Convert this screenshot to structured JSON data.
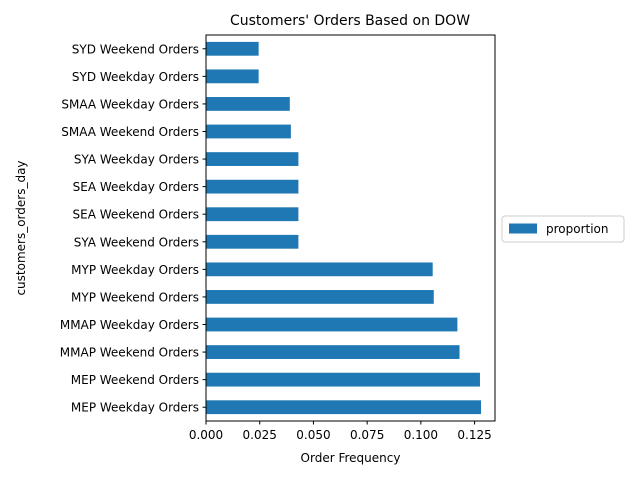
{
  "chart_data": {
    "type": "bar",
    "orientation": "horizontal",
    "title": "Customers' Orders Based on DOW",
    "xlabel": "Order Frequency",
    "ylabel": "customers_orders_day",
    "categories": [
      "MEP Weekday Orders",
      "MEP Weekend Orders",
      "MMAP Weekend Orders",
      "MMAP Weekday Orders",
      "MYP Weekend Orders",
      "MYP Weekday Orders",
      "SYA Weekend Orders",
      "SEA Weekend Orders",
      "SEA Weekday Orders",
      "SYA Weekday Orders",
      "SMAA Weekend Orders",
      "SMAA Weekday Orders",
      "SYD Weekday Orders",
      "SYD Weekend Orders"
    ],
    "series": [
      {
        "name": "proportion",
        "color": "#1f77b4",
        "values": [
          0.128,
          0.1275,
          0.118,
          0.117,
          0.106,
          0.1055,
          0.043,
          0.043,
          0.043,
          0.043,
          0.0395,
          0.039,
          0.0245,
          0.0245
        ]
      }
    ],
    "xlim": [
      0,
      0.1345
    ],
    "xticks": [
      "0.000",
      "0.025",
      "0.050",
      "0.075",
      "0.100",
      "0.125"
    ],
    "xtick_values": [
      0,
      0.025,
      0.05,
      0.075,
      0.1,
      0.125
    ],
    "grid": false,
    "legend_position": "right, outside the plot"
  }
}
